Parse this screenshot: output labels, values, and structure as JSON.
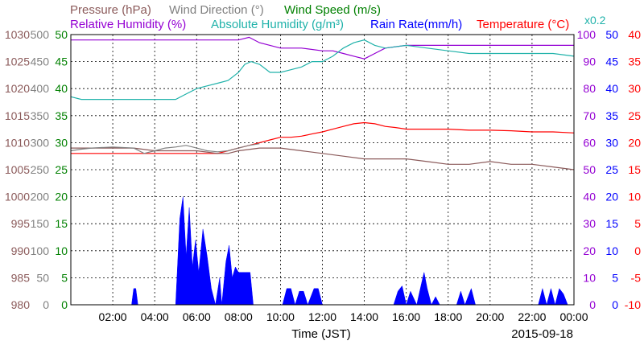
{
  "chart_data": {
    "type": "line",
    "title": "",
    "date_label": "2015-09-18",
    "xlabel": "Time (JST)",
    "x_ticks": [
      "02:00",
      "04:00",
      "06:00",
      "08:00",
      "10:00",
      "12:00",
      "14:00",
      "16:00",
      "18:00",
      "20:00",
      "22:00",
      "00:00"
    ],
    "x_range_hours": [
      0,
      24
    ],
    "grid": true,
    "legend": [
      {
        "text": "Pressure (hPa)",
        "color": "#8b5a5a"
      },
      {
        "text": "Wind Direction (°)",
        "color": "#808080"
      },
      {
        "text": "Wind Speed (m/s)",
        "color": "#008000"
      },
      {
        "text": "Relative Humidity (%)",
        "color": "#9400d3"
      },
      {
        "text": "Absolute Humidity (g/m³)",
        "color": "#20b2aa"
      },
      {
        "text": "Rain Rate(mm/h)",
        "color": "#0000ff"
      },
      {
        "text": "Temperature (°C)",
        "color": "#ff0000"
      },
      {
        "text": "x0.2",
        "color": "#20b2aa"
      }
    ],
    "axes": {
      "pressure": {
        "range": [
          980,
          1030
        ],
        "ticks": [
          "1030",
          "1025",
          "1020",
          "1015",
          "1010",
          "1005",
          "1000",
          "995",
          "990",
          "985",
          "980"
        ],
        "color": "#8b5a5a"
      },
      "wind_direction": {
        "range": [
          0,
          500
        ],
        "ticks": [
          "500",
          "450",
          "400",
          "350",
          "300",
          "250",
          "200",
          "150",
          "100",
          "50",
          "0"
        ],
        "color": "#808080"
      },
      "wind_speed": {
        "range": [
          0,
          50
        ],
        "ticks": [
          "50",
          "45",
          "40",
          "35",
          "30",
          "25",
          "20",
          "15",
          "10",
          "5",
          "0"
        ],
        "color": "#008000"
      },
      "humidity": {
        "range": [
          0,
          100
        ],
        "ticks": [
          "100",
          "90",
          "80",
          "70",
          "60",
          "50",
          "40",
          "30",
          "20",
          "10",
          "0"
        ],
        "color": "#9400d3"
      },
      "rain_rate": {
        "range": [
          0,
          50
        ],
        "ticks": [
          "50",
          "45",
          "40",
          "35",
          "30",
          "25",
          "20",
          "15",
          "10",
          "5",
          "0"
        ],
        "color": "#0000ff"
      },
      "temperature": {
        "range": [
          -10,
          40
        ],
        "ticks": [
          "40",
          "35",
          "30",
          "25",
          "20",
          "15",
          "10",
          "5",
          "0",
          "-5",
          "-10"
        ],
        "color": "#ff0000"
      }
    },
    "series": [
      {
        "name": "Relative Humidity (%)",
        "color": "#9400d3",
        "axis": "humidity",
        "x": [
          0,
          1,
          2,
          3,
          4,
          5,
          6,
          7,
          8,
          8.5,
          9,
          10,
          11,
          12,
          12.5,
          13,
          13.5,
          14,
          14.5,
          15,
          16,
          17,
          18,
          19,
          20,
          21,
          22,
          23,
          23.5,
          24
        ],
        "y": [
          98,
          98,
          98,
          98,
          98,
          98,
          98,
          98,
          98,
          99,
          97,
          95,
          95,
          94,
          94,
          93,
          92,
          91,
          93,
          95,
          96,
          96,
          96,
          96,
          96,
          96,
          96,
          96,
          96,
          96
        ]
      },
      {
        "name": "Absolute Humidity (g/m³)",
        "color": "#20b2aa",
        "axis": "humidity",
        "x": [
          0,
          0.5,
          1,
          2,
          3,
          4,
          5,
          5.5,
          6,
          6.5,
          7,
          7.5,
          8,
          8.3,
          8.6,
          9,
          9.5,
          10,
          10.5,
          11,
          11.5,
          12,
          12.5,
          13,
          13.5,
          14,
          14.5,
          15,
          16,
          17,
          18,
          19,
          20,
          21,
          22,
          23,
          24
        ],
        "y": [
          77,
          76,
          76,
          76,
          76,
          76,
          76,
          78,
          80,
          81,
          82,
          83,
          86,
          89,
          90,
          89,
          86,
          86,
          87,
          88,
          90,
          90,
          92,
          95,
          97,
          98,
          96,
          95,
          96,
          95,
          94,
          93,
          93,
          93,
          93,
          93,
          92
        ]
      },
      {
        "name": "Temperature (°C)",
        "color": "#ff0000",
        "axis": "temperature",
        "x": [
          0,
          1,
          2,
          3,
          4,
          5,
          6,
          7,
          7.5,
          8,
          8.5,
          9,
          9.5,
          10,
          10.5,
          11,
          11.5,
          12,
          12.5,
          13,
          13.5,
          14,
          14.5,
          15,
          15.5,
          16,
          17,
          18,
          19,
          20,
          21,
          22,
          23,
          24
        ],
        "y": [
          18,
          18,
          18,
          18,
          18,
          18,
          18,
          18,
          18.5,
          19,
          19.5,
          20,
          20.5,
          21,
          21,
          21.2,
          21.6,
          22,
          22.5,
          23,
          23.5,
          23.7,
          23.5,
          23,
          22.8,
          22.5,
          22.5,
          22.5,
          22.3,
          22.3,
          22.2,
          22,
          22,
          21.8
        ]
      },
      {
        "name": "Pressure (hPa)",
        "color": "#8b5a5a",
        "axis": "pressure",
        "x": [
          0,
          1,
          2,
          3,
          4,
          5,
          6,
          7,
          7.5,
          8,
          9,
          10,
          11,
          12,
          13,
          14,
          15,
          16,
          17,
          18,
          19,
          20,
          21,
          22,
          23,
          24
        ],
        "y": [
          1009,
          1009,
          1009,
          1009,
          1008.5,
          1008.5,
          1008.5,
          1008,
          1008,
          1008.5,
          1009,
          1009,
          1008.5,
          1008,
          1007.5,
          1007,
          1007,
          1007,
          1006.5,
          1006,
          1006,
          1006.5,
          1006,
          1006,
          1005.5,
          1005
        ]
      },
      {
        "name": "Wind Direction (°)",
        "color": "#808080",
        "axis": "wind_direction",
        "x": [
          0,
          0.5,
          1,
          2,
          3,
          3.5,
          4,
          4.5,
          5,
          5.5,
          6,
          6.5,
          7,
          7.5,
          8,
          8.5,
          9
        ],
        "y": [
          285,
          288,
          290,
          292,
          290,
          280,
          285,
          290,
          292,
          295,
          290,
          285,
          283,
          285,
          290,
          295,
          298
        ]
      },
      {
        "name": "Rain Rate(mm/h)",
        "color": "#0000ff",
        "axis": "rain_rate",
        "style": "area",
        "x": [
          0,
          2.9,
          3.0,
          3.1,
          3.2,
          5.0,
          5.2,
          5.35,
          5.5,
          5.65,
          5.8,
          5.95,
          6.1,
          6.3,
          6.5,
          6.7,
          6.9,
          7.1,
          7.2,
          7.4,
          7.55,
          7.7,
          7.85,
          8.0,
          8.15,
          8.3,
          8.55,
          8.7,
          10.1,
          10.3,
          10.5,
          10.7,
          10.9,
          11.1,
          11.3,
          11.6,
          11.8,
          12.0,
          15.4,
          15.6,
          15.8,
          16.0,
          16.2,
          16.5,
          16.7,
          16.85,
          17.0,
          17.2,
          17.4,
          17.6,
          18.4,
          18.6,
          18.8,
          19.1,
          19.3,
          19.5,
          22.3,
          22.5,
          22.7,
          22.9,
          23.1,
          23.3,
          23.5,
          23.7
        ],
        "y": [
          0,
          0,
          3,
          3,
          0,
          0,
          16,
          20,
          9,
          18,
          7,
          12,
          6,
          14,
          9,
          3,
          0,
          5,
          0,
          8,
          11,
          5,
          7,
          6,
          6,
          6,
          6,
          0,
          0,
          3,
          3,
          0,
          2.5,
          2.5,
          0,
          3,
          3,
          0,
          0,
          2.5,
          3.5,
          0,
          2.5,
          0,
          3.5,
          6,
          3,
          0,
          1.5,
          0,
          0,
          2.5,
          0,
          3,
          0,
          0,
          0,
          3,
          0,
          3,
          0,
          3,
          2,
          0
        ]
      }
    ]
  }
}
